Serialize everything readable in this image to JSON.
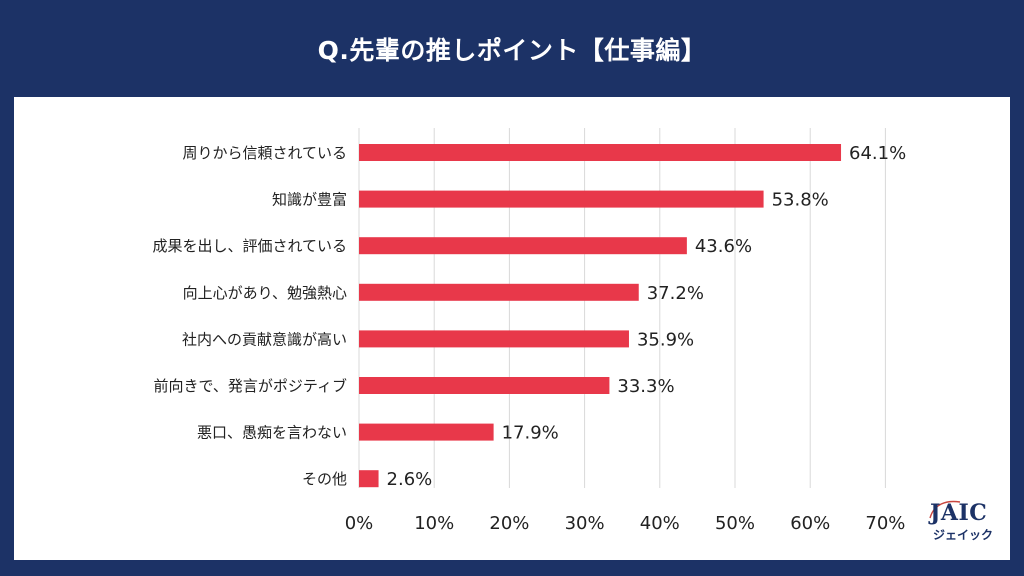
{
  "header": {
    "title": "Q.先輩の推しポイント【仕事編】"
  },
  "colors": {
    "frame": "#1c3266",
    "bar": "#e8384a",
    "grid": "#d9d9d9",
    "text": "#222222",
    "logo_accent": "#c8463f"
  },
  "chart_data": {
    "type": "bar",
    "orientation": "horizontal",
    "title": "Q.先輩の推しポイント【仕事編】",
    "xlabel": "",
    "ylabel": "",
    "xlim": [
      0,
      70
    ],
    "x_ticks": [
      0,
      10,
      20,
      30,
      40,
      50,
      60,
      70
    ],
    "x_tick_labels": [
      "0%",
      "10%",
      "20%",
      "30%",
      "40%",
      "50%",
      "60%",
      "70%"
    ],
    "grid": "vertical",
    "legend": "none",
    "categories": [
      "周りから信頼されている",
      "知識が豊富",
      "成果を出し、評価されている",
      "向上心があり、勉強熱心",
      "社内への貢献意識が高い",
      "前向きで、発言がポジティブ",
      "悪口、愚痴を言わない",
      "その他"
    ],
    "values": [
      64.1,
      53.8,
      43.6,
      37.2,
      35.9,
      33.3,
      17.9,
      2.6
    ],
    "value_labels": [
      "64.1%",
      "53.8%",
      "43.6%",
      "37.2%",
      "35.9%",
      "33.3%",
      "17.9%",
      "2.6%"
    ],
    "unit": "%"
  },
  "logo": {
    "name": "JAIC",
    "kana": "ジェイック"
  }
}
